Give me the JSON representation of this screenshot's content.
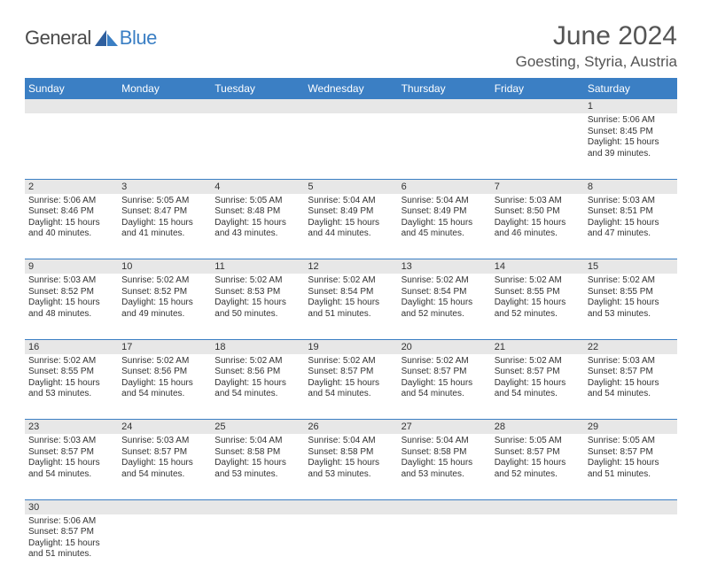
{
  "brand": {
    "general": "General",
    "blue": "Blue"
  },
  "title": "June 2024",
  "location": "Goesting, Styria, Austria",
  "colors": {
    "header_bg": "#3b7fc4",
    "header_text": "#ffffff",
    "grid_border": "#3b7fc4",
    "daynum_bg": "#e7e7e7",
    "text": "#333333",
    "title_text": "#555555"
  },
  "daysOfWeek": [
    "Sunday",
    "Monday",
    "Tuesday",
    "Wednesday",
    "Thursday",
    "Friday",
    "Saturday"
  ],
  "weeks": [
    [
      null,
      null,
      null,
      null,
      null,
      null,
      {
        "n": "1",
        "sunrise": "Sunrise: 5:06 AM",
        "sunset": "Sunset: 8:45 PM",
        "d1": "Daylight: 15 hours",
        "d2": "and 39 minutes."
      }
    ],
    [
      {
        "n": "2",
        "sunrise": "Sunrise: 5:06 AM",
        "sunset": "Sunset: 8:46 PM",
        "d1": "Daylight: 15 hours",
        "d2": "and 40 minutes."
      },
      {
        "n": "3",
        "sunrise": "Sunrise: 5:05 AM",
        "sunset": "Sunset: 8:47 PM",
        "d1": "Daylight: 15 hours",
        "d2": "and 41 minutes."
      },
      {
        "n": "4",
        "sunrise": "Sunrise: 5:05 AM",
        "sunset": "Sunset: 8:48 PM",
        "d1": "Daylight: 15 hours",
        "d2": "and 43 minutes."
      },
      {
        "n": "5",
        "sunrise": "Sunrise: 5:04 AM",
        "sunset": "Sunset: 8:49 PM",
        "d1": "Daylight: 15 hours",
        "d2": "and 44 minutes."
      },
      {
        "n": "6",
        "sunrise": "Sunrise: 5:04 AM",
        "sunset": "Sunset: 8:49 PM",
        "d1": "Daylight: 15 hours",
        "d2": "and 45 minutes."
      },
      {
        "n": "7",
        "sunrise": "Sunrise: 5:03 AM",
        "sunset": "Sunset: 8:50 PM",
        "d1": "Daylight: 15 hours",
        "d2": "and 46 minutes."
      },
      {
        "n": "8",
        "sunrise": "Sunrise: 5:03 AM",
        "sunset": "Sunset: 8:51 PM",
        "d1": "Daylight: 15 hours",
        "d2": "and 47 minutes."
      }
    ],
    [
      {
        "n": "9",
        "sunrise": "Sunrise: 5:03 AM",
        "sunset": "Sunset: 8:52 PM",
        "d1": "Daylight: 15 hours",
        "d2": "and 48 minutes."
      },
      {
        "n": "10",
        "sunrise": "Sunrise: 5:02 AM",
        "sunset": "Sunset: 8:52 PM",
        "d1": "Daylight: 15 hours",
        "d2": "and 49 minutes."
      },
      {
        "n": "11",
        "sunrise": "Sunrise: 5:02 AM",
        "sunset": "Sunset: 8:53 PM",
        "d1": "Daylight: 15 hours",
        "d2": "and 50 minutes."
      },
      {
        "n": "12",
        "sunrise": "Sunrise: 5:02 AM",
        "sunset": "Sunset: 8:54 PM",
        "d1": "Daylight: 15 hours",
        "d2": "and 51 minutes."
      },
      {
        "n": "13",
        "sunrise": "Sunrise: 5:02 AM",
        "sunset": "Sunset: 8:54 PM",
        "d1": "Daylight: 15 hours",
        "d2": "and 52 minutes."
      },
      {
        "n": "14",
        "sunrise": "Sunrise: 5:02 AM",
        "sunset": "Sunset: 8:55 PM",
        "d1": "Daylight: 15 hours",
        "d2": "and 52 minutes."
      },
      {
        "n": "15",
        "sunrise": "Sunrise: 5:02 AM",
        "sunset": "Sunset: 8:55 PM",
        "d1": "Daylight: 15 hours",
        "d2": "and 53 minutes."
      }
    ],
    [
      {
        "n": "16",
        "sunrise": "Sunrise: 5:02 AM",
        "sunset": "Sunset: 8:55 PM",
        "d1": "Daylight: 15 hours",
        "d2": "and 53 minutes."
      },
      {
        "n": "17",
        "sunrise": "Sunrise: 5:02 AM",
        "sunset": "Sunset: 8:56 PM",
        "d1": "Daylight: 15 hours",
        "d2": "and 54 minutes."
      },
      {
        "n": "18",
        "sunrise": "Sunrise: 5:02 AM",
        "sunset": "Sunset: 8:56 PM",
        "d1": "Daylight: 15 hours",
        "d2": "and 54 minutes."
      },
      {
        "n": "19",
        "sunrise": "Sunrise: 5:02 AM",
        "sunset": "Sunset: 8:57 PM",
        "d1": "Daylight: 15 hours",
        "d2": "and 54 minutes."
      },
      {
        "n": "20",
        "sunrise": "Sunrise: 5:02 AM",
        "sunset": "Sunset: 8:57 PM",
        "d1": "Daylight: 15 hours",
        "d2": "and 54 minutes."
      },
      {
        "n": "21",
        "sunrise": "Sunrise: 5:02 AM",
        "sunset": "Sunset: 8:57 PM",
        "d1": "Daylight: 15 hours",
        "d2": "and 54 minutes."
      },
      {
        "n": "22",
        "sunrise": "Sunrise: 5:03 AM",
        "sunset": "Sunset: 8:57 PM",
        "d1": "Daylight: 15 hours",
        "d2": "and 54 minutes."
      }
    ],
    [
      {
        "n": "23",
        "sunrise": "Sunrise: 5:03 AM",
        "sunset": "Sunset: 8:57 PM",
        "d1": "Daylight: 15 hours",
        "d2": "and 54 minutes."
      },
      {
        "n": "24",
        "sunrise": "Sunrise: 5:03 AM",
        "sunset": "Sunset: 8:57 PM",
        "d1": "Daylight: 15 hours",
        "d2": "and 54 minutes."
      },
      {
        "n": "25",
        "sunrise": "Sunrise: 5:04 AM",
        "sunset": "Sunset: 8:58 PM",
        "d1": "Daylight: 15 hours",
        "d2": "and 53 minutes."
      },
      {
        "n": "26",
        "sunrise": "Sunrise: 5:04 AM",
        "sunset": "Sunset: 8:58 PM",
        "d1": "Daylight: 15 hours",
        "d2": "and 53 minutes."
      },
      {
        "n": "27",
        "sunrise": "Sunrise: 5:04 AM",
        "sunset": "Sunset: 8:58 PM",
        "d1": "Daylight: 15 hours",
        "d2": "and 53 minutes."
      },
      {
        "n": "28",
        "sunrise": "Sunrise: 5:05 AM",
        "sunset": "Sunset: 8:57 PM",
        "d1": "Daylight: 15 hours",
        "d2": "and 52 minutes."
      },
      {
        "n": "29",
        "sunrise": "Sunrise: 5:05 AM",
        "sunset": "Sunset: 8:57 PM",
        "d1": "Daylight: 15 hours",
        "d2": "and 51 minutes."
      }
    ],
    [
      {
        "n": "30",
        "sunrise": "Sunrise: 5:06 AM",
        "sunset": "Sunset: 8:57 PM",
        "d1": "Daylight: 15 hours",
        "d2": "and 51 minutes."
      },
      null,
      null,
      null,
      null,
      null,
      null
    ]
  ]
}
